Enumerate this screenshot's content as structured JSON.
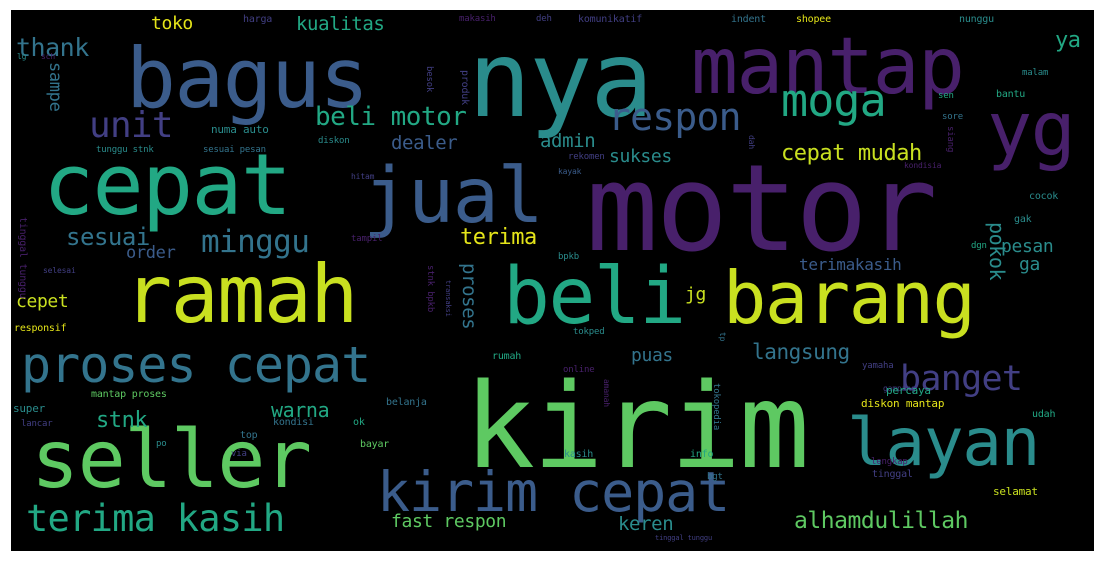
{
  "palette": {
    "purple": "#48206b",
    "indigo": "#423f84",
    "blue": "#3b5c8b",
    "steel": "#33748d",
    "teal": "#2a8c8c",
    "green": "#22a884",
    "lime": "#5ec962",
    "yellow": "#c9e020",
    "gold": "#e4e419",
    "bg": "#000000"
  },
  "words": [
    {
      "text": "motor",
      "color": "purple"
    },
    {
      "text": "kirim",
      "color": "lime"
    },
    {
      "text": "nya",
      "color": "teal"
    },
    {
      "text": "mantap",
      "color": "purple"
    },
    {
      "text": "bagus",
      "color": "blue"
    },
    {
      "text": "cepat",
      "color": "green"
    },
    {
      "text": "jual",
      "color": "blue"
    },
    {
      "text": "ramah",
      "color": "yellow"
    },
    {
      "text": "beli",
      "color": "green"
    },
    {
      "text": "barang",
      "color": "yellow"
    },
    {
      "text": "seller",
      "color": "lime"
    },
    {
      "text": "yg",
      "color": "purple"
    },
    {
      "text": "layan",
      "color": "teal"
    },
    {
      "text": "kirim cepat",
      "color": "blue"
    },
    {
      "text": "proses cepat",
      "color": "steel"
    },
    {
      "text": "terima kasih",
      "color": "green"
    },
    {
      "text": "moga",
      "color": "green"
    },
    {
      "text": "respon",
      "color": "blue"
    },
    {
      "text": "banget",
      "color": "indigo"
    },
    {
      "text": "unit",
      "color": "indigo"
    },
    {
      "text": "minggu",
      "color": "steel"
    },
    {
      "text": "beli motor",
      "color": "green"
    },
    {
      "text": "langsung",
      "color": "steel"
    },
    {
      "text": "alhamdulillah",
      "color": "lime"
    },
    {
      "text": "cepat mudah",
      "color": "yellow"
    },
    {
      "text": "thank",
      "color": "steel"
    },
    {
      "text": "sesuai",
      "color": "steel"
    },
    {
      "text": "terima",
      "color": "gold"
    },
    {
      "text": "warna",
      "color": "green"
    },
    {
      "text": "stnk",
      "color": "green"
    },
    {
      "text": "fast respon",
      "color": "lime"
    },
    {
      "text": "admin",
      "color": "teal"
    },
    {
      "text": "dealer",
      "color": "blue"
    },
    {
      "text": "sukses",
      "color": "teal"
    },
    {
      "text": "kualitas",
      "color": "green"
    },
    {
      "text": "toko",
      "color": "gold"
    },
    {
      "text": "cepet",
      "color": "yellow"
    },
    {
      "text": "order",
      "color": "blue"
    },
    {
      "text": "proses",
      "color": "steel"
    },
    {
      "text": "puas",
      "color": "steel"
    },
    {
      "text": "pokok",
      "color": "teal"
    },
    {
      "text": "pesan",
      "color": "teal"
    },
    {
      "text": "ya",
      "color": "green"
    },
    {
      "text": "ga",
      "color": "teal"
    },
    {
      "text": "terimakasih",
      "color": "blue"
    },
    {
      "text": "keren",
      "color": "teal"
    },
    {
      "text": "sampe",
      "color": "steel"
    },
    {
      "text": "jg",
      "color": "yellow"
    },
    {
      "text": "numa auto",
      "color": "teal"
    },
    {
      "text": "harga",
      "color": "indigo"
    },
    {
      "text": "makasih",
      "color": "purple"
    },
    {
      "text": "deh",
      "color": "indigo"
    },
    {
      "text": "komunikatif",
      "color": "indigo"
    },
    {
      "text": "indent",
      "color": "steel"
    },
    {
      "text": "shopee",
      "color": "gold"
    },
    {
      "text": "nunggu",
      "color": "teal"
    },
    {
      "text": "besok",
      "color": "indigo"
    },
    {
      "text": "produk",
      "color": "indigo"
    },
    {
      "text": "malam",
      "color": "teal"
    },
    {
      "text": "sen",
      "color": "green"
    },
    {
      "text": "bantu",
      "color": "green"
    },
    {
      "text": "sore",
      "color": "steel"
    },
    {
      "text": "siang",
      "color": "purple"
    },
    {
      "text": "rekomen",
      "color": "indigo"
    },
    {
      "text": "dah",
      "color": "indigo"
    },
    {
      "text": "kayak",
      "color": "blue"
    },
    {
      "text": "kondisia",
      "color": "purple"
    },
    {
      "text": "tunggu stnk",
      "color": "teal"
    },
    {
      "text": "sesuai pesan",
      "color": "steel"
    },
    {
      "text": "diskon",
      "color": "teal"
    },
    {
      "text": "hitam",
      "color": "indigo"
    },
    {
      "text": "tampil",
      "color": "purple"
    },
    {
      "text": "stnk bpkb",
      "color": "purple"
    },
    {
      "text": "transaksi",
      "color": "indigo"
    },
    {
      "text": "bpkb",
      "color": "teal"
    },
    {
      "text": "gak",
      "color": "teal"
    },
    {
      "text": "dgn",
      "color": "green"
    },
    {
      "text": "cocok",
      "color": "teal"
    },
    {
      "text": "tinggal tunggu",
      "color": "purple"
    },
    {
      "text": "selesai",
      "color": "indigo"
    },
    {
      "text": "responsif",
      "color": "gold"
    },
    {
      "text": "tokped",
      "color": "teal"
    },
    {
      "text": "tp",
      "color": "steel"
    },
    {
      "text": "rumah",
      "color": "green"
    },
    {
      "text": "yamaha",
      "color": "indigo"
    },
    {
      "text": "gampang",
      "color": "indigo"
    },
    {
      "text": "online",
      "color": "purple"
    },
    {
      "text": "amanah",
      "color": "purple"
    },
    {
      "text": "super",
      "color": "teal"
    },
    {
      "text": "lancar",
      "color": "indigo"
    },
    {
      "text": "mantap proses",
      "color": "lime"
    },
    {
      "text": "belanja",
      "color": "steel"
    },
    {
      "text": "kondisi",
      "color": "steel"
    },
    {
      "text": "ok",
      "color": "green"
    },
    {
      "text": "bayar",
      "color": "lime"
    },
    {
      "text": "percaya",
      "color": "green"
    },
    {
      "text": "tokopedia",
      "color": "steel"
    },
    {
      "text": "diskon mantap",
      "color": "gold"
    },
    {
      "text": "udah",
      "color": "green"
    },
    {
      "text": "top",
      "color": "steel"
    },
    {
      "text": "po",
      "color": "teal"
    },
    {
      "text": "via",
      "color": "indigo"
    },
    {
      "text": "kasih",
      "color": "teal"
    },
    {
      "text": "info",
      "color": "green"
    },
    {
      "text": "tinggal",
      "color": "indigo"
    },
    {
      "text": "lengkap",
      "color": "purple"
    },
    {
      "text": "bgt",
      "color": "steel"
    },
    {
      "text": "selamat",
      "color": "yellow"
    },
    {
      "text": "tinggal tunggu",
      "color": "indigo"
    },
    {
      "text": "lg",
      "color": "teal"
    },
    {
      "text": "sch",
      "color": "purple"
    }
  ]
}
